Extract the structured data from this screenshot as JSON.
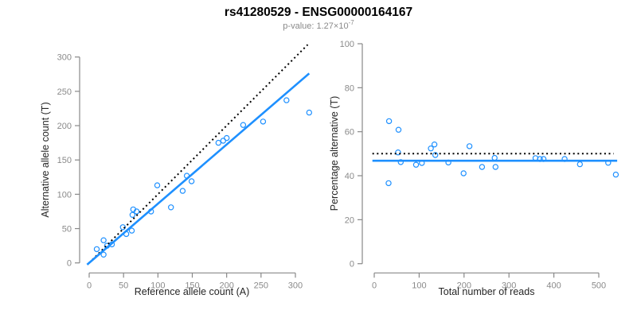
{
  "figure": {
    "title": "rs41280529 - ENSG00000164167",
    "subtitle_label": "p-value: ",
    "subtitle_value": "1.27×10",
    "subtitle_exponent": "-7"
  },
  "colors": {
    "point_blue": "#1E90FF",
    "line_blue": "#1E90FF",
    "reference_black": "#000000",
    "axis_gray": "#888888",
    "tick_label_gray": "#8a8a8a",
    "axis_title_color": "#262626",
    "title_color": "#000000",
    "background": "#ffffff"
  },
  "chart_data": [
    {
      "type": "scatter",
      "panel": "left",
      "xlabel": "Reference allele count (A)",
      "ylabel": "Alternative allele count (T)",
      "xlim": [
        0,
        322
      ],
      "ylim": [
        0,
        322
      ],
      "xticks": [
        0,
        50,
        100,
        150,
        200,
        250,
        300
      ],
      "yticks": [
        0,
        50,
        100,
        150,
        200,
        250,
        300
      ],
      "grid": false,
      "legend": null,
      "points": [
        [
          11,
          20
        ],
        [
          21,
          12
        ],
        [
          21,
          33
        ],
        [
          26,
          25
        ],
        [
          33,
          27
        ],
        [
          49,
          52
        ],
        [
          54,
          42
        ],
        [
          62,
          47
        ],
        [
          63,
          70
        ],
        [
          64,
          78
        ],
        [
          69,
          75
        ],
        [
          90,
          75
        ],
        [
          99,
          113
        ],
        [
          119,
          81
        ],
        [
          136,
          105
        ],
        [
          142,
          127
        ],
        [
          149,
          119
        ],
        [
          188,
          175
        ],
        [
          195,
          178
        ],
        [
          200,
          182
        ],
        [
          224,
          201
        ],
        [
          253,
          206
        ],
        [
          287,
          237
        ],
        [
          320,
          219
        ]
      ],
      "lines": [
        {
          "name": "regression-line",
          "style": "solid",
          "color": "#1E90FF",
          "from": [
            -3,
            -2.6
          ],
          "to": [
            320,
            276
          ]
        },
        {
          "name": "identity-line",
          "style": "dotted",
          "color": "#000000",
          "from": [
            0,
            0
          ],
          "to": [
            318,
            318
          ]
        }
      ]
    },
    {
      "type": "scatter",
      "panel": "right",
      "xlabel": "Total number of reads",
      "ylabel": "Percentage alternative (T)",
      "xlim": [
        0,
        545
      ],
      "ylim": [
        0,
        100
      ],
      "xticks": [
        0,
        100,
        200,
        300,
        400,
        500
      ],
      "yticks": [
        0,
        20,
        40,
        60,
        80,
        100
      ],
      "grid": false,
      "legend": null,
      "points": [
        [
          33,
          64.8
        ],
        [
          32,
          36.6
        ],
        [
          53,
          50.6
        ],
        [
          54,
          60.9
        ],
        [
          59,
          46.2
        ],
        [
          93,
          45.0
        ],
        [
          106,
          45.8
        ],
        [
          126,
          52.4
        ],
        [
          134,
          54.2
        ],
        [
          136,
          49.4
        ],
        [
          165,
          46.0
        ],
        [
          199,
          41.1
        ],
        [
          212,
          53.4
        ],
        [
          240,
          44.0
        ],
        [
          268,
          48.1
        ],
        [
          270,
          44.0
        ],
        [
          359,
          48.0
        ],
        [
          369,
          47.6
        ],
        [
          377,
          47.6
        ],
        [
          424,
          47.6
        ],
        [
          458,
          45.2
        ],
        [
          521,
          45.9
        ],
        [
          538,
          40.5
        ]
      ],
      "lines": [
        {
          "name": "mean-line",
          "style": "solid",
          "color": "#1E90FF",
          "from": [
            -4,
            46.8
          ],
          "to": [
            541,
            46.8
          ]
        },
        {
          "name": "expected-line",
          "style": "dotted",
          "color": "#000000",
          "from": [
            -4,
            50
          ],
          "to": [
            533,
            50
          ]
        }
      ]
    }
  ]
}
